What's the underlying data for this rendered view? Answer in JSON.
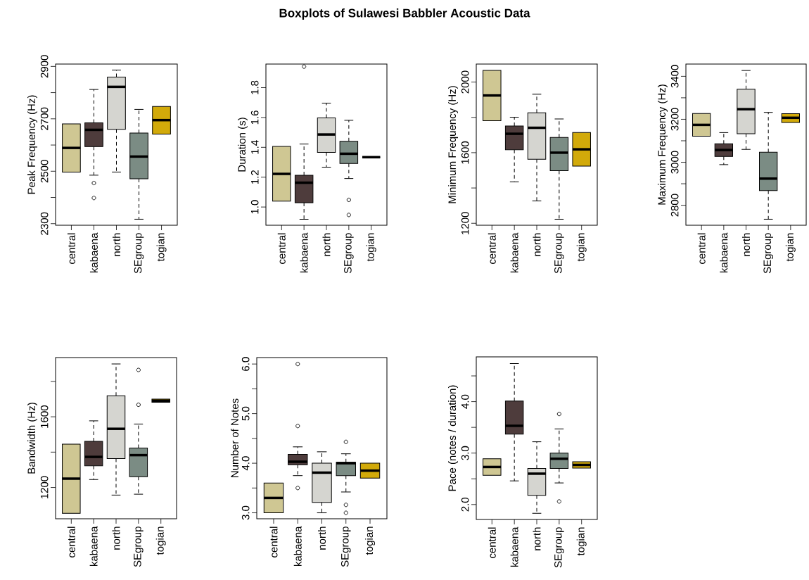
{
  "chart_data": [
    {
      "type": "other",
      "title": "Boxplots of Sulawesi Babbler Acoustic Data"
    },
    {
      "type": "box",
      "ylabel": "Peak Frequency (Hz)",
      "categories": [
        "central",
        "kabaena",
        "north",
        "SEgroup",
        "togian"
      ],
      "colors": [
        "#cfc793",
        "#4e3c3c",
        "#d5d5d0",
        "#7b8c84",
        "#d2aa0a"
      ],
      "ylim": [
        2294,
        2909
      ],
      "yticks": [
        2300,
        {
          "value": 2400,
          "label": null
        },
        2500,
        {
          "value": 2600,
          "label": null
        },
        2700,
        {
          "value": 2800,
          "label": null
        },
        2900
      ],
      "boxes": [
        {
          "low": 2497,
          "q1": 2497,
          "median": 2589,
          "q3": 2681,
          "high": 2681
        },
        {
          "low": 2485,
          "q1": 2594,
          "median": 2658,
          "q3": 2685,
          "high": 2812,
          "outliers": [
            2455,
            2398
          ]
        },
        {
          "low": 2497,
          "q1": 2660,
          "median": 2822,
          "q3": 2859,
          "high": 2886
        },
        {
          "low": 2317,
          "q1": 2471,
          "median": 2556,
          "q3": 2646,
          "high": 2736
        },
        {
          "low": 2642,
          "q1": 2642,
          "median": 2695,
          "q3": 2747,
          "high": 2747
        }
      ]
    },
    {
      "type": "box",
      "ylabel": "Duration (s)",
      "categories": [
        "central",
        "kabaena",
        "north",
        "SEgroup",
        "togian"
      ],
      "colors": [
        "#cfc793",
        "#4e3c3c",
        "#d5d5d0",
        "#7b8c84",
        "#000000"
      ],
      "ylim": [
        0.878,
        1.958
      ],
      "yticks": [
        {
          "value": 1.0,
          "label": "1.0"
        },
        {
          "value": 1.2,
          "label": "1.2"
        },
        {
          "value": 1.4,
          "label": "1.4"
        },
        {
          "value": 1.6,
          "label": "1.6"
        },
        {
          "value": 1.8,
          "label": "1.8"
        }
      ],
      "boxes": [
        {
          "low": 1.04,
          "q1": 1.04,
          "median": 1.222,
          "q3": 1.406,
          "high": 1.406
        },
        {
          "low": 0.918,
          "q1": 1.029,
          "median": 1.163,
          "q3": 1.213,
          "high": 1.422,
          "outliers": [
            1.941
          ]
        },
        {
          "low": 1.267,
          "q1": 1.366,
          "median": 1.486,
          "q3": 1.597,
          "high": 1.696
        },
        {
          "low": 1.191,
          "q1": 1.292,
          "median": 1.357,
          "q3": 1.44,
          "high": 1.581,
          "outliers": [
            1.048,
            0.947
          ]
        },
        {
          "low": 1.334,
          "q1": 1.334,
          "median": 1.334,
          "q3": 1.334,
          "high": 1.334
        }
      ]
    },
    {
      "type": "box",
      "ylabel": "Minimum Frequency (Hz)",
      "categories": [
        "central",
        "kabaena",
        "north",
        "SEgroup",
        "togian"
      ],
      "colors": [
        "#cfc793",
        "#4e3c3c",
        "#d5d5d0",
        "#7b8c84",
        "#d2aa0a"
      ],
      "ylim": [
        1189,
        2102
      ],
      "yticks": [
        1200,
        {
          "value": 1400,
          "label": null
        },
        1600,
        {
          "value": 1800,
          "label": null
        },
        2000
      ],
      "boxes": [
        {
          "low": 1781,
          "q1": 1781,
          "median": 1924,
          "q3": 2066,
          "high": 2066
        },
        {
          "low": 1435,
          "q1": 1617,
          "median": 1707,
          "q3": 1751,
          "high": 1801
        },
        {
          "low": 1327,
          "q1": 1563,
          "median": 1741,
          "q3": 1826,
          "high": 1931
        },
        {
          "low": 1223,
          "q1": 1498,
          "median": 1600,
          "q3": 1686,
          "high": 1791
        },
        {
          "low": 1524,
          "q1": 1524,
          "median": 1619,
          "q3": 1714,
          "high": 1714
        }
      ]
    },
    {
      "type": "box",
      "ylabel": "Maximum Frequency (Hz)",
      "categories": [
        "central",
        "kabaena",
        "north",
        "SEgroup",
        "togian"
      ],
      "colors": [
        "#cfc793",
        "#4e3c3c",
        "#d5d5d0",
        "#7b8c84",
        "#d2aa0a"
      ],
      "ylim": [
        2707,
        3457
      ],
      "yticks": [
        2800,
        {
          "value": 2900,
          "label": null
        },
        3000,
        {
          "value": 3100,
          "label": null
        },
        3200,
        {
          "value": 3300,
          "label": null
        },
        3400
      ],
      "boxes": [
        {
          "low": 3121,
          "q1": 3121,
          "median": 3174,
          "q3": 3227,
          "high": 3227
        },
        {
          "low": 2989,
          "q1": 3027,
          "median": 3057,
          "q3": 3086,
          "high": 3138
        },
        {
          "low": 3060,
          "q1": 3133,
          "median": 3247,
          "q3": 3340,
          "high": 3427
        },
        {
          "low": 2735,
          "q1": 2868,
          "median": 2924,
          "q3": 3047,
          "high": 3232
        },
        {
          "low": 3185,
          "q1": 3185,
          "median": 3207,
          "q3": 3226,
          "high": 3226
        }
      ]
    },
    {
      "type": "box",
      "ylabel": "Bandwidth (Hz)",
      "categories": [
        "central",
        "kabaena",
        "north",
        "SEgroup",
        "togian"
      ],
      "colors": [
        "#cfc793",
        "#4e3c3c",
        "#d5d5d0",
        "#7b8c84",
        "#d2aa0a"
      ],
      "ylim": [
        1023,
        1935
      ],
      "yticks": [
        1200,
        {
          "value": 1400,
          "label": null
        },
        1600,
        {
          "value": 1800,
          "label": null
        }
      ],
      "boxes": [
        {
          "low": 1054,
          "q1": 1054,
          "median": 1250,
          "q3": 1445,
          "high": 1445
        },
        {
          "low": 1245,
          "q1": 1323,
          "median": 1373,
          "q3": 1461,
          "high": 1577
        },
        {
          "low": 1157,
          "q1": 1363,
          "median": 1532,
          "q3": 1719,
          "high": 1899
        },
        {
          "low": 1162,
          "q1": 1261,
          "median": 1383,
          "q3": 1423,
          "high": 1559,
          "outliers": [
            1865,
            1668
          ]
        },
        {
          "low": 1682,
          "q1": 1682,
          "median": 1691,
          "q3": 1700,
          "high": 1700
        }
      ]
    },
    {
      "type": "box",
      "ylabel": "Number of Notes",
      "categories": [
        "central",
        "kabaena",
        "north",
        "SEgroup",
        "togian"
      ],
      "colors": [
        "#cfc793",
        "#4e3c3c",
        "#d5d5d0",
        "#7b8c84",
        "#d2aa0a"
      ],
      "ylim": [
        2.88,
        6.13
      ],
      "yticks": [
        {
          "value": 3.0,
          "label": "3.0"
        },
        {
          "value": 3.5,
          "label": null
        },
        {
          "value": 4.0,
          "label": "4.0"
        },
        {
          "value": 4.5,
          "label": null
        },
        {
          "value": 5.0,
          "label": "5.0"
        },
        {
          "value": 5.5,
          "label": null
        },
        {
          "value": 6.0,
          "label": "6.0"
        }
      ],
      "boxes": [
        {
          "low": 3.0,
          "q1": 3.0,
          "median": 3.3,
          "q3": 3.6,
          "high": 3.6
        },
        {
          "low": 3.75,
          "q1": 3.97,
          "median": 4.03,
          "q3": 4.18,
          "high": 4.33,
          "outliers": [
            3.5,
            4.75,
            6.0
          ]
        },
        {
          "low": 3.0,
          "q1": 3.21,
          "median": 3.81,
          "q3": 4.0,
          "high": 4.23
        },
        {
          "low": 3.42,
          "q1": 3.75,
          "median": 4.0,
          "q3": 4.02,
          "high": 4.19,
          "outliers": [
            4.43,
            3.16,
            3.0
          ]
        },
        {
          "low": 3.7,
          "q1": 3.7,
          "median": 3.85,
          "q3": 4.0,
          "high": 4.0
        }
      ]
    },
    {
      "type": "box",
      "ylabel": "Pace (notes / duration)",
      "categories": [
        "central",
        "kabaena",
        "north",
        "SEgroup",
        "togian"
      ],
      "colors": [
        "#cfc793",
        "#4e3c3c",
        "#d5d5d0",
        "#7b8c84",
        "#d2aa0a"
      ],
      "ylim": [
        1.71,
        4.87
      ],
      "yticks": [
        {
          "value": 2.0,
          "label": "2.0"
        },
        {
          "value": 2.5,
          "label": null
        },
        {
          "value": 3.0,
          "label": "3.0"
        },
        {
          "value": 3.5,
          "label": null
        },
        {
          "value": 4.0,
          "label": "4.0"
        },
        {
          "value": 4.5,
          "label": null
        }
      ],
      "boxes": [
        {
          "low": 2.57,
          "q1": 2.57,
          "median": 2.73,
          "q3": 2.89,
          "high": 2.89
        },
        {
          "low": 2.46,
          "q1": 3.37,
          "median": 3.53,
          "q3": 4.01,
          "high": 4.74
        },
        {
          "low": 1.83,
          "q1": 2.18,
          "median": 2.6,
          "q3": 2.7,
          "high": 3.22
        },
        {
          "low": 2.42,
          "q1": 2.7,
          "median": 2.89,
          "q3": 3.0,
          "high": 3.47,
          "outliers": [
            3.76,
            2.06
          ]
        },
        {
          "low": 2.71,
          "q1": 2.71,
          "median": 2.77,
          "q3": 2.83,
          "high": 2.83
        }
      ]
    }
  ]
}
